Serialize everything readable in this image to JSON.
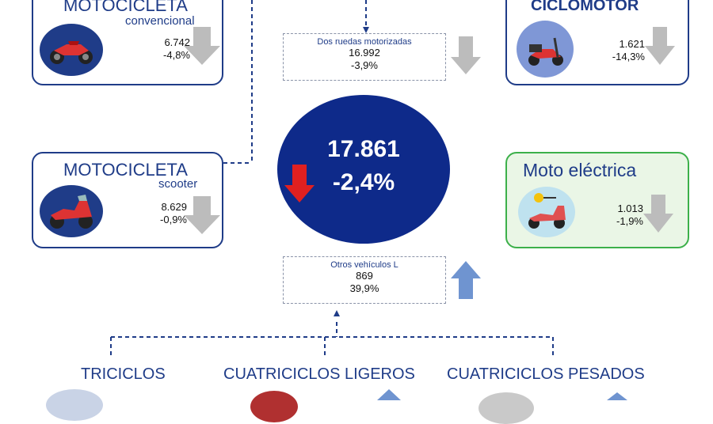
{
  "colors": {
    "navy": "#1f3c88",
    "green": "#3cb04a",
    "down": "#bcbcbc",
    "up": "#6f94d0",
    "red": "#e02020"
  },
  "total": {
    "value": "17.861",
    "change": "-2,4%",
    "trend": "down"
  },
  "moto_convencional": {
    "title": "MOTOCICLETA",
    "subtitle": "convencional",
    "value": "6.742",
    "change": "-4,8%",
    "icon": "motorcycle-icon"
  },
  "moto_scooter": {
    "title": "MOTOCICLETA",
    "subtitle": "scooter",
    "value": "8.629",
    "change": "-0,9%",
    "icon": "scooter-icon"
  },
  "ciclomotor": {
    "title": "CICLOMOTOR",
    "value": "1.621",
    "change": "-14,3%",
    "icon": "moped-icon"
  },
  "moto_electrica": {
    "title": "Moto eléctrica",
    "value": "1.013",
    "change": "-1,9%",
    "icon": "electric-scooter-icon"
  },
  "dos_ruedas": {
    "label": "Dos ruedas motorizadas",
    "value": "16.992",
    "change": "-3,9%"
  },
  "otros_l": {
    "label": "Otros vehículos L",
    "value": "869",
    "change": "39,9%"
  },
  "bottom": {
    "triciclos": "TRICICLOS",
    "cuatriciclos_ligeros": "CUATRICICLOS LIGEROS",
    "cuatriciclos_pesados": "CUATRICICLOS PESADOS"
  }
}
